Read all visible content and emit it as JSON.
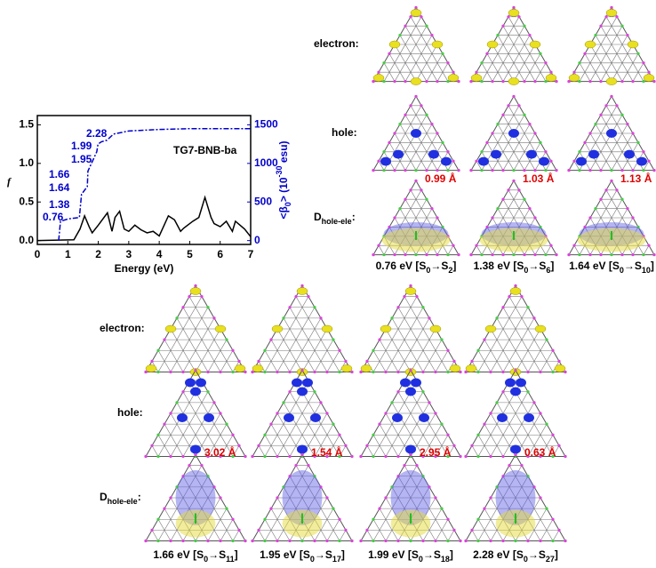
{
  "chart_data": {
    "type": "line",
    "annotation_title": "TG7-BNB-ba",
    "xlabel": "Energy (eV)",
    "ylabel": "f",
    "y2label": [
      "<β",
      "0",
      "> (10",
      "-30",
      " esu)"
    ],
    "xlim": [
      0,
      7
    ],
    "xticks": [
      0,
      1,
      2,
      3,
      4,
      5,
      6,
      7
    ],
    "ylim": [
      -0.05,
      1.62
    ],
    "yticks": [
      {
        "value": 0,
        "label": "0.0"
      },
      {
        "value": 0.5,
        "label": "0.5"
      },
      {
        "value": 1,
        "label": "1.0"
      },
      {
        "value": 1.5,
        "label": "1.5"
      }
    ],
    "y2lim": [
      -50,
      1620
    ],
    "y2ticks": [
      0,
      500,
      1000,
      1500
    ],
    "series": [
      {
        "color": "#000000",
        "x": [
          0,
          1.2,
          1.4,
          1.55,
          1.7,
          1.8,
          2.0,
          2.3,
          2.45,
          2.55,
          2.7,
          2.85,
          3.0,
          3.2,
          3.4,
          3.6,
          3.8,
          4.0,
          4.3,
          4.5,
          4.7,
          4.8,
          5.0,
          5.1,
          5.3,
          5.5,
          5.7,
          5.8,
          6.0,
          6.2,
          6.4,
          6.5,
          6.8,
          7.0
        ],
        "values": [
          0,
          0.01,
          0.15,
          0.32,
          0.18,
          0.1,
          0.2,
          0.36,
          0.12,
          0.3,
          0.38,
          0.15,
          0.12,
          0.2,
          0.14,
          0.1,
          0.12,
          0.06,
          0.32,
          0.27,
          0.12,
          0.16,
          0.22,
          0.25,
          0.3,
          0.56,
          0.3,
          0.22,
          0.18,
          0.25,
          0.12,
          0.25,
          0.15,
          0.05
        ]
      },
      {
        "color": "#0000cc",
        "axis": "y2",
        "x": [
          0.7,
          0.76,
          1.0,
          1.38,
          1.45,
          1.64,
          1.66,
          1.95,
          1.99,
          2.1,
          2.28,
          2.5,
          3.0,
          4.0,
          5.0,
          6.0,
          7.0
        ],
        "values": [
          0,
          250,
          280,
          300,
          600,
          700,
          900,
          1150,
          1250,
          1280,
          1300,
          1380,
          1420,
          1440,
          1450,
          1450,
          1450
        ]
      }
    ],
    "annotations": [
      "0.76",
      "1.38",
      "1.64",
      "1.66",
      "1.95",
      "1.99",
      "2.28"
    ]
  },
  "labels": {
    "electron": "electron:",
    "hole": "hole:",
    "d": [
      "D",
      "hole-ele",
      ":"
    ]
  },
  "top_panels": [
    {
      "distance": "0.99 Å",
      "caption": [
        "0.76 eV [S",
        "0",
        "→S",
        "2",
        "]"
      ]
    },
    {
      "distance": "1.03 Å",
      "caption": [
        "1.38 eV [S",
        "0",
        "→S",
        "6",
        "]"
      ]
    },
    {
      "distance": "1.13 Å",
      "caption": [
        "1.64 eV [S",
        "0",
        "→S",
        "10",
        "]"
      ]
    }
  ],
  "bottom_panels": [
    {
      "distance": "3.02 Å",
      "caption": [
        "1.66 eV [S",
        "0",
        "→S",
        "11",
        "]"
      ]
    },
    {
      "distance": "1.54 Å",
      "caption": [
        "1.95 eV [S",
        "0",
        "→S",
        "17",
        "]"
      ]
    },
    {
      "distance": "2.95 Å",
      "caption": [
        "1.99 eV [S",
        "0",
        "→S",
        "18",
        "]"
      ]
    },
    {
      "distance": "0.63 Å",
      "caption": [
        "2.28 eV [S",
        "0",
        "→S",
        "27",
        "]"
      ]
    }
  ]
}
